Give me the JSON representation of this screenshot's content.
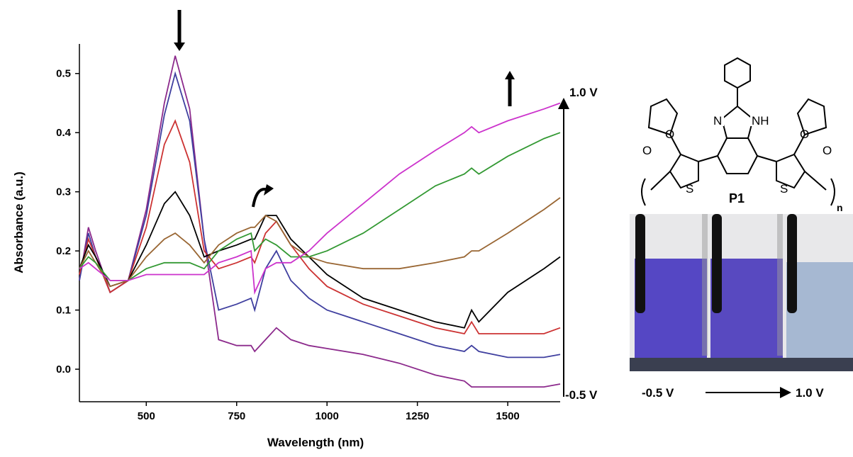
{
  "chart_data": {
    "type": "line",
    "x_label": "Wavelength (nm)",
    "y_label": "Absorbance (a.u.)",
    "annotations": [
      "1.0 V",
      "-0.5 V"
    ],
    "xlim": [
      315,
      1645
    ],
    "xticks": [
      500,
      750,
      1000,
      1250,
      1500
    ],
    "ylim": [
      -0.055,
      0.55
    ],
    "yticks": [
      {
        "value": 0,
        "label": "0.0"
      },
      0.1,
      0.2,
      0.3,
      0.4,
      0.5
    ],
    "x": [
      315,
      340,
      360,
      400,
      450,
      500,
      550,
      580,
      620,
      660,
      700,
      750,
      790,
      800,
      830,
      860,
      900,
      950,
      1000,
      1100,
      1200,
      1300,
      1380,
      1400,
      1420,
      1500,
      1600,
      1645
    ],
    "series": [
      {
        "color": "#8c2a8c",
        "values": [
          0.15,
          0.24,
          0.2,
          0.13,
          0.15,
          0.27,
          0.45,
          0.53,
          0.44,
          0.22,
          0.05,
          0.04,
          0.04,
          0.03,
          0.05,
          0.07,
          0.05,
          0.04,
          0.035,
          0.025,
          0.01,
          -0.01,
          -0.02,
          -0.03,
          -0.03,
          -0.03,
          -0.03,
          -0.025
        ]
      },
      {
        "color": "#3f3f9f",
        "values": [
          0.15,
          0.23,
          0.19,
          0.13,
          0.15,
          0.26,
          0.43,
          0.5,
          0.42,
          0.22,
          0.1,
          0.11,
          0.12,
          0.1,
          0.17,
          0.2,
          0.15,
          0.12,
          0.1,
          0.08,
          0.06,
          0.04,
          0.03,
          0.04,
          0.03,
          0.02,
          0.02,
          0.025
        ]
      },
      {
        "color": "#cc3333",
        "values": [
          0.16,
          0.22,
          0.19,
          0.13,
          0.15,
          0.24,
          0.38,
          0.42,
          0.35,
          0.2,
          0.17,
          0.18,
          0.19,
          0.18,
          0.23,
          0.25,
          0.21,
          0.17,
          0.14,
          0.11,
          0.09,
          0.07,
          0.06,
          0.08,
          0.06,
          0.06,
          0.06,
          0.07
        ]
      },
      {
        "color": "#000000",
        "values": [
          0.17,
          0.21,
          0.19,
          0.14,
          0.15,
          0.21,
          0.28,
          0.3,
          0.26,
          0.19,
          0.2,
          0.21,
          0.22,
          0.22,
          0.26,
          0.26,
          0.22,
          0.19,
          0.16,
          0.12,
          0.1,
          0.08,
          0.07,
          0.1,
          0.08,
          0.13,
          0.17,
          0.19
        ]
      },
      {
        "color": "#996633",
        "values": [
          0.17,
          0.2,
          0.18,
          0.14,
          0.15,
          0.19,
          0.22,
          0.23,
          0.21,
          0.18,
          0.21,
          0.23,
          0.24,
          0.24,
          0.26,
          0.25,
          0.21,
          0.19,
          0.18,
          0.17,
          0.17,
          0.18,
          0.19,
          0.2,
          0.2,
          0.23,
          0.27,
          0.29
        ]
      },
      {
        "color": "#339933",
        "values": [
          0.17,
          0.19,
          0.18,
          0.15,
          0.15,
          0.17,
          0.18,
          0.18,
          0.18,
          0.17,
          0.2,
          0.22,
          0.23,
          0.2,
          0.22,
          0.21,
          0.19,
          0.19,
          0.2,
          0.23,
          0.27,
          0.31,
          0.33,
          0.34,
          0.33,
          0.36,
          0.39,
          0.4
        ]
      },
      {
        "color": "#cc33cc",
        "values": [
          0.17,
          0.18,
          0.17,
          0.15,
          0.15,
          0.16,
          0.16,
          0.16,
          0.16,
          0.16,
          0.18,
          0.19,
          0.2,
          0.13,
          0.17,
          0.18,
          0.18,
          0.2,
          0.23,
          0.28,
          0.33,
          0.37,
          0.4,
          0.41,
          0.4,
          0.42,
          0.44,
          0.45
        ]
      }
    ]
  },
  "structure": {
    "name": "P1",
    "atoms": [
      "N",
      "NH",
      "O",
      "O",
      "O",
      "O",
      "S",
      "S"
    ],
    "repeat": "n"
  },
  "photo": {
    "left_label": "-0.5 V",
    "right_label": "1.0 V"
  }
}
